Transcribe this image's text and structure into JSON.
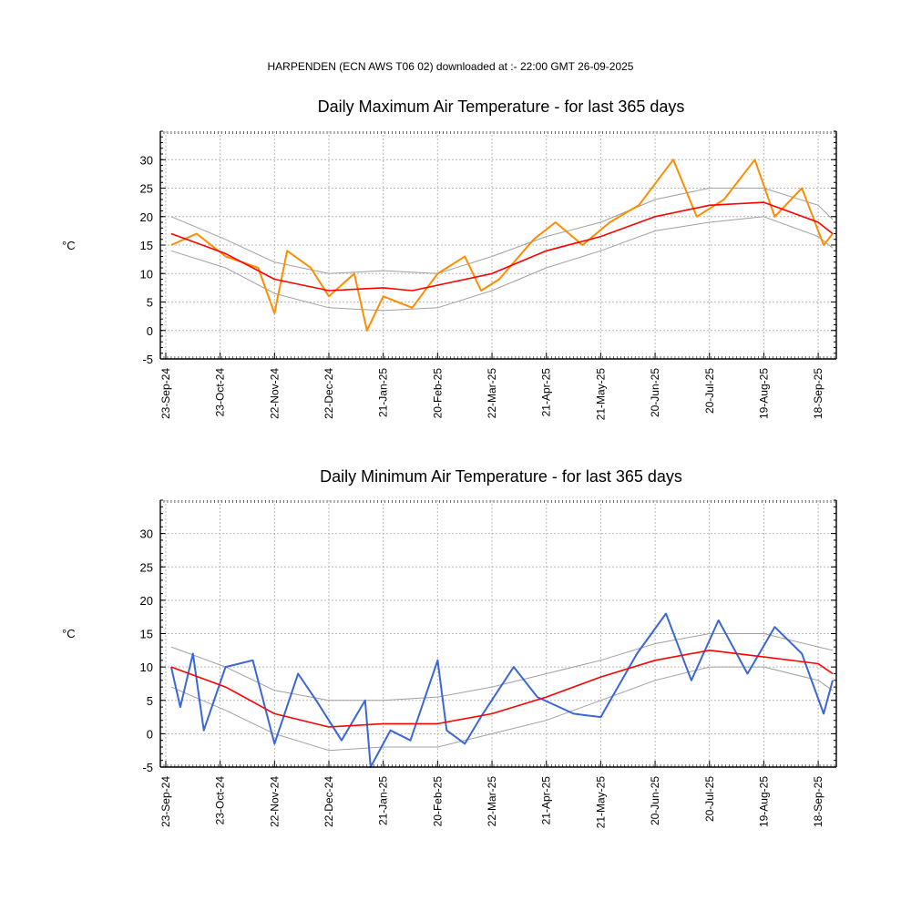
{
  "header": "HARPENDEN (ECN AWS T06 02) downloaded at :- 22:00 GMT 26-09-2025",
  "chart_data": [
    {
      "type": "line",
      "title": "Daily Maximum Air Temperature - for last 365 days",
      "ylabel": "°C",
      "ylim": [
        -5,
        35
      ],
      "yticks": [
        -5,
        0,
        5,
        10,
        15,
        20,
        25,
        30
      ],
      "xticks": [
        "23-Sep-24",
        "23-Oct-24",
        "22-Nov-24",
        "22-Dec-24",
        "21-Jan-25",
        "20-Feb-25",
        "22-Mar-25",
        "21-Apr-25",
        "21-May-25",
        "20-Jun-25",
        "20-Jul-25",
        "19-Aug-25",
        "18-Sep-25"
      ],
      "grid": true,
      "colors": {
        "observed": "#ff8c00",
        "mean": "#ff0000",
        "envelope": "#a0a0a0"
      },
      "series": [
        {
          "role": "observed",
          "x": [
            "26-Sep-24",
            "10-Oct-24",
            "26-Oct-24",
            "13-Nov-24",
            "22-Nov-24",
            "29-Nov-24",
            "12-Dec-24",
            "22-Dec-24",
            "05-Jan-25",
            "12-Jan-25",
            "21-Jan-25",
            "06-Feb-25",
            "20-Feb-25",
            "07-Mar-25",
            "16-Mar-25",
            "26-Mar-25",
            "14-Apr-25",
            "26-Apr-25",
            "11-May-25",
            "26-May-25",
            "11-Jun-25",
            "30-Jun-25",
            "13-Jul-25",
            "28-Jul-25",
            "14-Aug-25",
            "25-Aug-25",
            "09-Sep-25",
            "21-Sep-25",
            "26-Sep-25"
          ],
          "values": [
            15,
            17,
            13,
            11,
            3,
            14,
            11,
            6,
            10,
            0,
            6,
            4,
            10,
            13,
            7,
            9,
            16,
            19,
            15,
            19,
            22,
            30,
            20,
            23,
            30,
            20,
            25,
            15,
            17
          ]
        },
        {
          "role": "mean",
          "x": [
            "26-Sep-24",
            "26-Oct-24",
            "22-Nov-24",
            "22-Dec-24",
            "21-Jan-25",
            "06-Feb-25",
            "22-Mar-25",
            "21-Apr-25",
            "21-May-25",
            "20-Jun-25",
            "20-Jul-25",
            "19-Aug-25",
            "18-Sep-25",
            "26-Sep-25"
          ],
          "values": [
            17,
            13.5,
            9,
            7,
            7.5,
            7,
            10,
            14,
            16.5,
            20,
            22,
            22.5,
            19,
            17
          ]
        },
        {
          "role": "envelope-upper",
          "x": [
            "26-Sep-24",
            "26-Oct-24",
            "22-Nov-24",
            "22-Dec-24",
            "21-Jan-25",
            "20-Feb-25",
            "22-Mar-25",
            "21-Apr-25",
            "21-May-25",
            "20-Jun-25",
            "20-Jul-25",
            "19-Aug-25",
            "18-Sep-25",
            "26-Sep-25"
          ],
          "values": [
            20,
            16,
            12,
            10,
            10.5,
            10,
            13,
            16.5,
            19,
            23,
            25,
            25,
            22,
            19.5
          ]
        },
        {
          "role": "envelope-lower",
          "x": [
            "26-Sep-24",
            "26-Oct-24",
            "22-Nov-24",
            "22-Dec-24",
            "21-Jan-25",
            "20-Feb-25",
            "22-Mar-25",
            "21-Apr-25",
            "21-May-25",
            "20-Jun-25",
            "20-Jul-25",
            "19-Aug-25",
            "18-Sep-25",
            "26-Sep-25"
          ],
          "values": [
            14,
            11,
            6.5,
            4,
            3.5,
            4,
            7,
            11,
            14,
            17.5,
            19,
            20,
            16.5,
            14.5
          ]
        }
      ]
    },
    {
      "type": "line",
      "title": "Daily Minimum Air Temperature - for last 365 days",
      "ylabel": "°C",
      "ylim": [
        -5,
        35
      ],
      "yticks": [
        -5,
        0,
        5,
        10,
        15,
        20,
        25,
        30
      ],
      "xticks": [
        "23-Sep-24",
        "23-Oct-24",
        "22-Nov-24",
        "22-Dec-24",
        "21-Jan-25",
        "20-Feb-25",
        "22-Mar-25",
        "21-Apr-25",
        "21-May-25",
        "20-Jun-25",
        "20-Jul-25",
        "19-Aug-25",
        "18-Sep-25"
      ],
      "grid": true,
      "colors": {
        "observed": "#3a66d6",
        "mean": "#ff0000",
        "envelope": "#a0a0a0"
      },
      "series": [
        {
          "role": "observed",
          "x": [
            "26-Sep-24",
            "01-Oct-24",
            "08-Oct-24",
            "14-Oct-24",
            "26-Oct-24",
            "10-Nov-24",
            "22-Nov-24",
            "05-Dec-24",
            "15-Dec-24",
            "29-Dec-24",
            "11-Jan-25",
            "14-Jan-25",
            "25-Jan-25",
            "05-Feb-25",
            "20-Feb-25",
            "25-Feb-25",
            "07-Mar-25",
            "17-Mar-25",
            "03-Apr-25",
            "16-Apr-25",
            "06-May-25",
            "21-May-25",
            "10-Jun-25",
            "26-Jun-25",
            "10-Jul-25",
            "25-Jul-25",
            "10-Aug-25",
            "25-Aug-25",
            "09-Sep-25",
            "21-Sep-25",
            "26-Sep-25"
          ],
          "values": [
            10,
            4,
            12,
            0.5,
            10,
            11,
            -1.5,
            9,
            5,
            -1,
            5,
            -5,
            0.5,
            -1,
            11,
            0.5,
            -1.5,
            3,
            10,
            5.5,
            3,
            2.5,
            12,
            18,
            8,
            17,
            9,
            16,
            12,
            3,
            8
          ]
        },
        {
          "role": "mean",
          "x": [
            "26-Sep-24",
            "26-Oct-24",
            "22-Nov-24",
            "22-Dec-24",
            "21-Jan-25",
            "20-Feb-25",
            "22-Mar-25",
            "21-Apr-25",
            "21-May-25",
            "20-Jun-25",
            "20-Jul-25",
            "19-Aug-25",
            "18-Sep-25",
            "26-Sep-25"
          ],
          "values": [
            10,
            7,
            3,
            1,
            1.5,
            1.5,
            3,
            5.5,
            8.5,
            11,
            12.5,
            11.5,
            10.5,
            9
          ]
        },
        {
          "role": "envelope-upper",
          "x": [
            "26-Sep-24",
            "26-Oct-24",
            "22-Nov-24",
            "22-Dec-24",
            "21-Jan-25",
            "20-Feb-25",
            "22-Mar-25",
            "21-Apr-25",
            "21-May-25",
            "20-Jun-25",
            "20-Jul-25",
            "19-Aug-25",
            "18-Sep-25",
            "26-Sep-25"
          ],
          "values": [
            13,
            10,
            6.5,
            5,
            5,
            5.5,
            7,
            9,
            11,
            13.5,
            15,
            15,
            13,
            12.5
          ]
        },
        {
          "role": "envelope-lower",
          "x": [
            "26-Sep-24",
            "26-Oct-24",
            "22-Nov-24",
            "22-Dec-24",
            "21-Jan-25",
            "20-Feb-25",
            "22-Mar-25",
            "21-Apr-25",
            "21-May-25",
            "20-Jun-25",
            "20-Jul-25",
            "19-Aug-25",
            "18-Sep-25",
            "26-Sep-25"
          ],
          "values": [
            7,
            3.5,
            0,
            -2.5,
            -2,
            -2,
            0,
            2,
            5,
            8,
            10,
            10,
            8,
            6.5
          ]
        }
      ]
    }
  ]
}
